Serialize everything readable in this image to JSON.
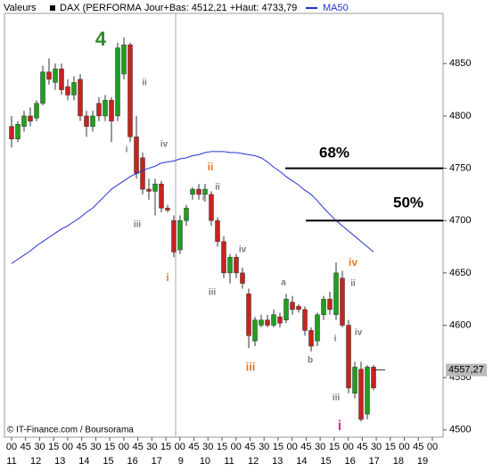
{
  "chart_data": {
    "type": "candlestick",
    "header": {
      "section": "Valeurs",
      "info": "Jour+Bas: 4512,21 +Haut: 4733,79"
    },
    "series": [
      {
        "name": "DAX (PERFORMA",
        "color": "#000000",
        "up_color": "#1f9f1f",
        "down_color": "#c8231d",
        "open": [
          4790,
          4778,
          4790,
          4800,
          4798,
          4812,
          4842,
          4832,
          4845,
          4828,
          4820,
          4835,
          4800,
          4790,
          4812,
          4800,
          4815,
          4800,
          4840,
          4868,
          4780,
          4760,
          4730,
          4728,
          4735,
          4712,
          4700,
          4672,
          4700,
          4725,
          4730,
          4725,
          4725,
          4700,
          4680,
          4650,
          4665,
          4650,
          4630,
          4585,
          4600,
          4605,
          4600,
          4608,
          4605,
          4622,
          4618,
          4615,
          4595,
          4585,
          4610,
          4625,
          4610,
          4645,
          4600,
          4535,
          4558,
          4515,
          4560
        ],
        "high": [
          4800,
          4795,
          4805,
          4808,
          4815,
          4848,
          4855,
          4850,
          4850,
          4835,
          4838,
          4840,
          4805,
          4805,
          4818,
          4820,
          4818,
          4870,
          4875,
          4870,
          4800,
          4765,
          4740,
          4740,
          4738,
          4715,
          4705,
          4705,
          4715,
          4732,
          4735,
          4735,
          4728,
          4703,
          4685,
          4668,
          4668,
          4655,
          4635,
          4608,
          4610,
          4610,
          4615,
          4612,
          4630,
          4628,
          4620,
          4618,
          4598,
          4612,
          4628,
          4632,
          4660,
          4652,
          4605,
          4565,
          4565,
          4562,
          4562
        ],
        "low": [
          4770,
          4775,
          4785,
          4790,
          4795,
          4810,
          4830,
          4825,
          4820,
          4815,
          4815,
          4795,
          4780,
          4785,
          4795,
          4795,
          4775,
          4795,
          4835,
          4775,
          4740,
          4725,
          4720,
          4705,
          4708,
          4708,
          4665,
          4668,
          4695,
          4720,
          4720,
          4718,
          4695,
          4675,
          4645,
          4640,
          4645,
          4635,
          4578,
          4580,
          4598,
          4598,
          4598,
          4598,
          4602,
          4610,
          4612,
          4590,
          4575,
          4580,
          4605,
          4610,
          4605,
          4598,
          4535,
          4530,
          4508,
          4510,
          4538
        ],
        "close": [
          4778,
          4792,
          4800,
          4795,
          4812,
          4842,
          4835,
          4845,
          4825,
          4820,
          4832,
          4800,
          4790,
          4800,
          4800,
          4815,
          4795,
          4865,
          4868,
          4780,
          4745,
          4730,
          4728,
          4735,
          4712,
          4710,
          4670,
          4700,
          4712,
          4730,
          4725,
          4730,
          4700,
          4680,
          4650,
          4665,
          4650,
          4640,
          4590,
          4605,
          4605,
          4600,
          4610,
          4602,
          4625,
          4615,
          4615,
          4595,
          4580,
          4610,
          4625,
          4615,
          4650,
          4600,
          4540,
          4560,
          4510,
          4560,
          4540
        ]
      },
      {
        "name": "MA50",
        "color": "#2233cc",
        "values": [
          4659,
          4663,
          4667,
          4671,
          4676,
          4680,
          4684,
          4688,
          4692,
          4695,
          4699,
          4703,
          4708,
          4712,
          4718,
          4724,
          4730,
          4734,
          4738,
          4742,
          4745,
          4748,
          4750,
          4752,
          4755,
          4756,
          4757,
          4759,
          4760,
          4762,
          4763,
          4765,
          4766,
          4766,
          4766,
          4765,
          4765,
          4764,
          4763,
          4762,
          4760,
          4756,
          4751,
          4747,
          4742,
          4738,
          4734,
          4729,
          4725,
          4719,
          4712,
          4706,
          4700,
          4695,
          4690,
          4685,
          4680,
          4675,
          4670
        ]
      }
    ],
    "last": {
      "value": 4557.27,
      "label": "4557,27"
    },
    "levels": [
      {
        "label": "68%",
        "value": 4750
      },
      {
        "label": "50%",
        "value": 4700
      }
    ],
    "annotations": [
      {
        "text": "4",
        "color": "#2e8b2e"
      },
      {
        "text": "ii",
        "color": "#777777"
      },
      {
        "text": "i",
        "color": "#777777"
      },
      {
        "text": "iv",
        "color": "#777777"
      },
      {
        "text": "iii",
        "color": "#777777"
      },
      {
        "text": "ii",
        "color": "#e07b2a"
      },
      {
        "text": "ii",
        "color": "#777777"
      },
      {
        "text": "i",
        "color": "#777777"
      },
      {
        "text": "i",
        "color": "#e07b2a"
      },
      {
        "text": "iii",
        "color": "#777777"
      },
      {
        "text": "iv",
        "color": "#777777"
      },
      {
        "text": "iii",
        "color": "#e07b2a"
      },
      {
        "text": "a",
        "color": "#777777"
      },
      {
        "text": "b",
        "color": "#777777"
      },
      {
        "text": "iv",
        "color": "#e07b2a"
      },
      {
        "text": "ii",
        "color": "#777777"
      },
      {
        "text": "i",
        "color": "#777777"
      },
      {
        "text": "iv",
        "color": "#777777"
      },
      {
        "text": "iii",
        "color": "#777777"
      },
      {
        "text": "i",
        "color": "#e0288e"
      }
    ],
    "ylim": [
      4493,
      4898
    ],
    "yticks": [
      4500,
      4550,
      4600,
      4650,
      4700,
      4750,
      4800,
      4850
    ],
    "xtick_labels": [
      "00",
      "45",
      "30",
      "15",
      "00",
      "45",
      "30",
      "15",
      "00",
      "45",
      "30",
      "15",
      "00",
      "45",
      "30",
      "15",
      "00",
      "45",
      "30",
      "15",
      "00",
      "45",
      "30",
      "15",
      "00",
      "45",
      "30",
      "15",
      "00",
      "45",
      "00"
    ],
    "day_labels": [
      "11",
      "12",
      "13",
      "14",
      "15",
      "16",
      "17",
      "9",
      "10",
      "11",
      "12",
      "13",
      "14",
      "15",
      "16",
      "17",
      "18",
      "19"
    ],
    "credit": "© IT-Finance.com / Boursorama"
  }
}
